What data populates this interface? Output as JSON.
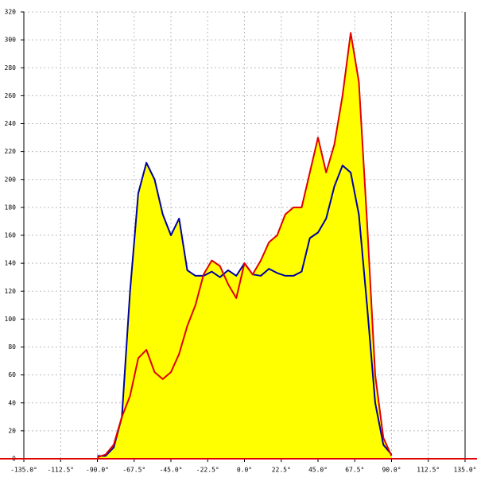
{
  "chart_data": {
    "type": "area-line",
    "x": [
      -90,
      -85,
      -80,
      -75,
      -70,
      -65,
      -60,
      -55,
      -50,
      -45,
      -40,
      -35,
      -30,
      -25,
      -20,
      -15,
      -10,
      -5,
      0,
      5,
      10,
      15,
      20,
      25,
      30,
      35,
      40,
      45,
      50,
      55,
      60,
      65,
      70,
      75,
      80,
      85,
      90
    ],
    "series": [
      {
        "color": "#0000a0",
        "values": [
          2,
          2,
          8,
          30,
          120,
          190,
          212,
          200,
          175,
          160,
          172,
          135,
          131,
          131,
          134,
          130,
          135,
          131,
          140,
          132,
          131,
          136,
          133,
          131,
          131,
          134,
          158,
          162,
          172,
          195,
          210,
          205,
          175,
          110,
          40,
          10,
          3
        ]
      },
      {
        "color": "#e00000",
        "values": [
          1,
          3,
          10,
          30,
          45,
          72,
          78,
          62,
          57,
          62,
          75,
          95,
          110,
          132,
          142,
          138,
          125,
          115,
          140,
          132,
          142,
          155,
          160,
          175,
          180,
          180,
          205,
          230,
          205,
          225,
          260,
          305,
          270,
          170,
          60,
          15,
          2
        ]
      }
    ],
    "fill_color": "#ffff00",
    "xlim": [
      -135,
      135
    ],
    "xticks": [
      {
        "value": -135,
        "label": "-135.0°"
      },
      {
        "value": -112.5,
        "label": "-112.5°"
      },
      {
        "value": -90,
        "label": "-90.0°"
      },
      {
        "value": -67.5,
        "label": "-67.5°"
      },
      {
        "value": -45,
        "label": "-45.0°"
      },
      {
        "value": -22.5,
        "label": "-22.5°"
      },
      {
        "value": 0,
        "label": "0.0°"
      },
      {
        "value": 22.5,
        "label": "22.5°"
      },
      {
        "value": 45,
        "label": "45.0°"
      },
      {
        "value": 67.5,
        "label": "67.5°"
      },
      {
        "value": 90,
        "label": "90.0°"
      },
      {
        "value": 112.5,
        "label": "112.5°"
      },
      {
        "value": 135,
        "label": "135.0°"
      }
    ],
    "ylim": [
      0,
      320
    ],
    "yticks": [
      0,
      20,
      40,
      60,
      80,
      100,
      120,
      140,
      160,
      180,
      200,
      220,
      240,
      260,
      280,
      300,
      320
    ],
    "grid": true
  }
}
